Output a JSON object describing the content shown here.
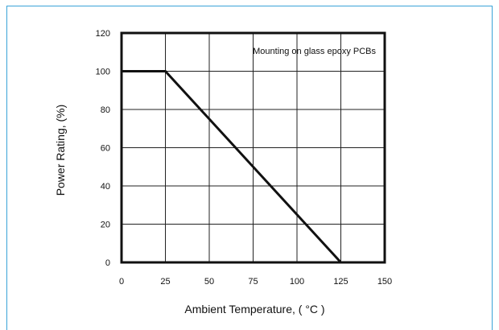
{
  "chart_data": {
    "type": "line",
    "series": [
      {
        "x": [
          0,
          25,
          125
        ],
        "y": [
          100,
          100,
          0
        ]
      }
    ],
    "xlabel": "Ambient Temperature, ( °C )",
    "ylabel": "Power Rating, (%)",
    "xlim": [
      0,
      150
    ],
    "ylim": [
      0,
      120
    ],
    "xticks": [
      "0",
      "25",
      "50",
      "75",
      "100",
      "125",
      "150"
    ],
    "yticks": [
      "0",
      "20",
      "40",
      "60",
      "80",
      "100",
      "120"
    ],
    "annotation": "Mounting on glass epoxy PCBs",
    "grid": true,
    "line_color": "#111111",
    "frame_color": "#3aa3d8"
  }
}
